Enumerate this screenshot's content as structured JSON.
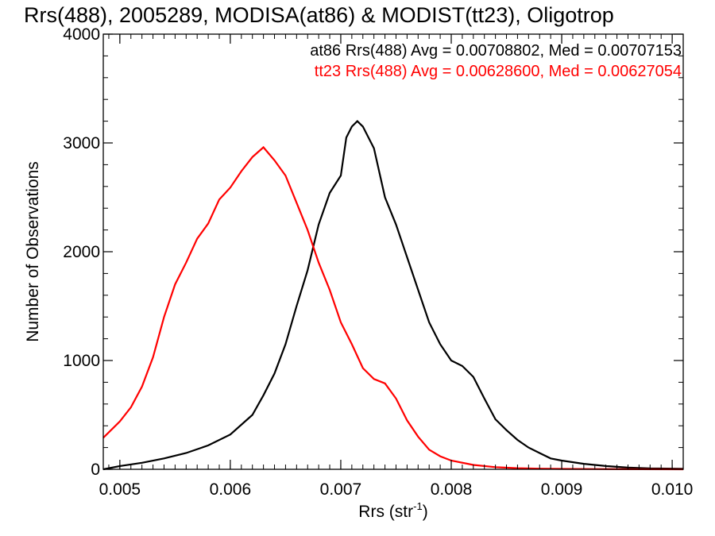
{
  "chart_data": {
    "type": "line",
    "title": "Rrs(488), 2005289, MODISA(at86) & MODIST(tt23), Oligotrop",
    "xlabel": "Rrs (str",
    "xlabel_sup": "-1",
    "xlabel_close": ")",
    "ylabel": "Number of Observations",
    "xlim": [
      0.00485,
      0.0101
    ],
    "ylim": [
      0,
      4000
    ],
    "xticks": [
      0.005,
      0.006,
      0.007,
      0.008,
      0.009,
      0.01
    ],
    "xtick_labels": [
      "0.005",
      "0.006",
      "0.007",
      "0.008",
      "0.009",
      "0.010"
    ],
    "yticks": [
      0,
      1000,
      2000,
      3000,
      4000
    ],
    "ytick_labels": [
      "0",
      "1000",
      "2000",
      "3000",
      "4000"
    ],
    "grid": false,
    "legend_placement": "top-right",
    "series": [
      {
        "name": "at86 Rrs(488) Avg = 0.00708802, Med = 0.00707153",
        "color": "#000000",
        "x": [
          0.00485,
          0.005,
          0.0052,
          0.0054,
          0.0056,
          0.0058,
          0.006,
          0.0062,
          0.0063,
          0.0064,
          0.0065,
          0.0066,
          0.0067,
          0.0068,
          0.0069,
          0.007,
          0.00705,
          0.0071,
          0.00715,
          0.0072,
          0.0073,
          0.0074,
          0.0075,
          0.0076,
          0.0077,
          0.0078,
          0.0079,
          0.008,
          0.0081,
          0.0082,
          0.0083,
          0.0084,
          0.0085,
          0.0086,
          0.0087,
          0.0088,
          0.0089,
          0.009,
          0.0092,
          0.0094,
          0.0096,
          0.0098,
          0.0101
        ],
        "y": [
          0,
          30,
          60,
          100,
          150,
          220,
          320,
          500,
          680,
          880,
          1150,
          1500,
          1830,
          2250,
          2540,
          2700,
          3050,
          3150,
          3200,
          3150,
          2950,
          2500,
          2250,
          1950,
          1650,
          1350,
          1150,
          1000,
          950,
          850,
          650,
          460,
          360,
          270,
          200,
          150,
          100,
          80,
          50,
          30,
          15,
          8,
          5
        ]
      },
      {
        "name": "tt23 Rrs(488) Avg = 0.00628600, Med = 0.00627054",
        "color": "#ff0000",
        "x": [
          0.00485,
          0.005,
          0.0051,
          0.0052,
          0.0053,
          0.0054,
          0.0055,
          0.0056,
          0.0057,
          0.0058,
          0.0059,
          0.006,
          0.0061,
          0.0062,
          0.0063,
          0.0064,
          0.0065,
          0.0066,
          0.0067,
          0.0068,
          0.0069,
          0.007,
          0.0071,
          0.0072,
          0.0073,
          0.0074,
          0.0075,
          0.0076,
          0.0077,
          0.0078,
          0.0079,
          0.008,
          0.0082,
          0.0084,
          0.0086,
          0.0088,
          0.009,
          0.0093,
          0.0097,
          0.0101
        ],
        "y": [
          290,
          440,
          570,
          760,
          1030,
          1400,
          1700,
          1900,
          2120,
          2260,
          2480,
          2590,
          2740,
          2870,
          2960,
          2840,
          2700,
          2450,
          2200,
          1900,
          1650,
          1350,
          1150,
          930,
          830,
          790,
          650,
          450,
          300,
          180,
          120,
          80,
          40,
          20,
          10,
          6,
          4,
          2,
          1,
          0
        ]
      }
    ]
  }
}
